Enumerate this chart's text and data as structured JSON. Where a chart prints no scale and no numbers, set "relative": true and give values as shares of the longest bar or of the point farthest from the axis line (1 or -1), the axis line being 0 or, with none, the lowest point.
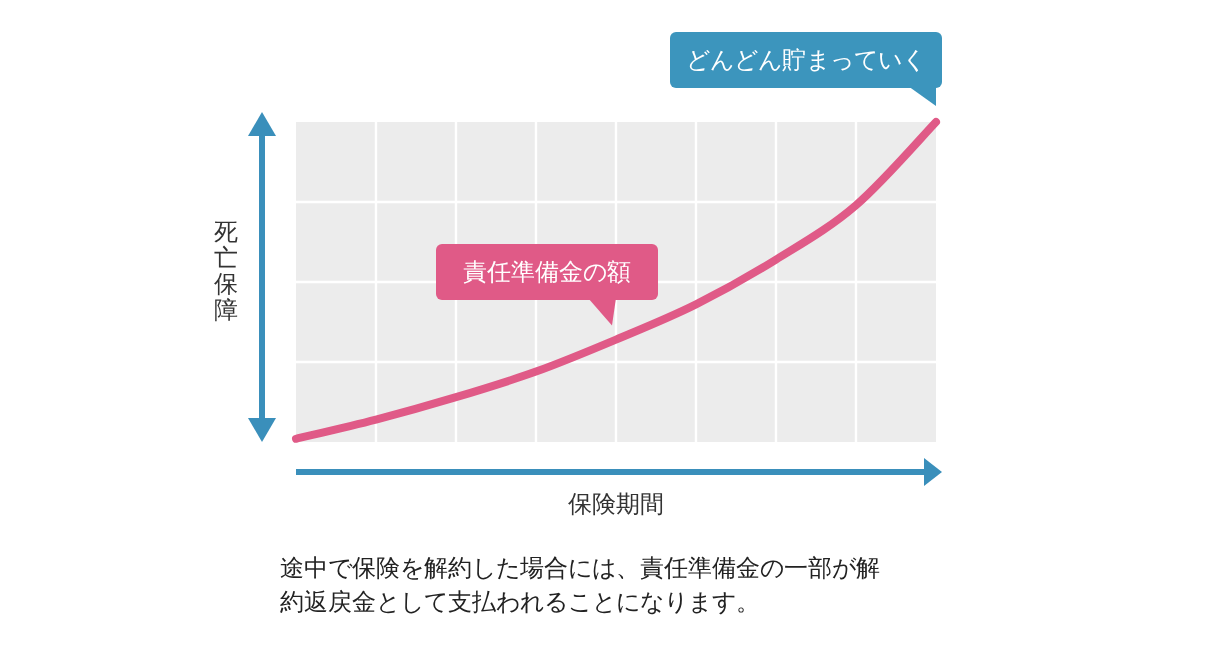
{
  "chart_data": {
    "type": "line",
    "relative": true,
    "xlabel": "保険期間",
    "ylabel": "死亡保障",
    "grid": true,
    "marker": "none",
    "line_style": "solid",
    "categories": [
      null,
      null,
      null,
      null,
      null,
      null,
      null,
      null,
      null
    ],
    "series": [
      {
        "color": "#e05a87",
        "values": [
          0.01,
          0.07,
          0.14,
          0.22,
          0.32,
          0.43,
          0.57,
          0.74,
          1.0
        ]
      }
    ],
    "annotations": [
      "責任準備金の額",
      "どんどん貯まっていく",
      "途中で保険を解約した場合には、責任準備金の一部が解約返戻金として支払われることになります。"
    ]
  }
}
